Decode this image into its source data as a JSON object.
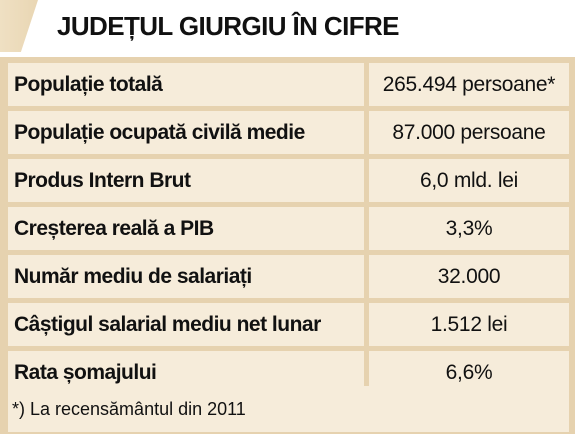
{
  "title": "JUDEȚUL GIURGIU ÎN CIFRE",
  "rows": [
    {
      "label": "Populație totală",
      "value": "265.494 persoane*"
    },
    {
      "label": "Populație ocupată civilă medie",
      "value": "87.000 persoane"
    },
    {
      "label": "Produs Intern Brut",
      "value": "6,0 mld. lei"
    },
    {
      "label": "Creșterea reală a PIB",
      "value": "3,3%"
    },
    {
      "label": "Număr mediu de salariați",
      "value": "32.000"
    },
    {
      "label": "Câștigul salarial mediu net lunar",
      "value": "1.512 lei"
    },
    {
      "label": "Rata șomajului",
      "value": "6,6%"
    }
  ],
  "footnote": "*) La recensământul din 2011",
  "colors": {
    "header_accent": "#efe0c3",
    "frame": "#e6d2af",
    "cell_background": "#f6ecda",
    "text": "#111111"
  }
}
